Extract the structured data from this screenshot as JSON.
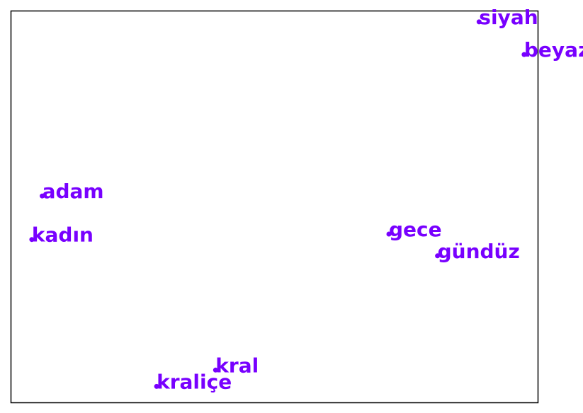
{
  "chart_data": {
    "type": "scatter",
    "title": "",
    "xlabel": "",
    "ylabel": "",
    "grid": false,
    "axis_ticks": false,
    "xlim": [
      -3.05,
      4.55
    ],
    "ylim": [
      -3.2,
      4.0
    ],
    "marker_color": "#7800ff",
    "label_color": "#7800ff",
    "points": [
      {
        "label": "siyah",
        "x": 3.7,
        "y": 3.8
      },
      {
        "label": "beyaz",
        "x": 4.35,
        "y": 3.2
      },
      {
        "label": "adam",
        "x": -2.6,
        "y": 0.6
      },
      {
        "label": "kadın",
        "x": -2.75,
        "y": -0.2
      },
      {
        "label": "gece",
        "x": 2.4,
        "y": -0.1
      },
      {
        "label": "gündüz",
        "x": 3.1,
        "y": -0.5
      },
      {
        "label": "kral",
        "x": -0.1,
        "y": -2.6
      },
      {
        "label": "kraliçe",
        "x": -0.95,
        "y": -2.9
      }
    ]
  }
}
